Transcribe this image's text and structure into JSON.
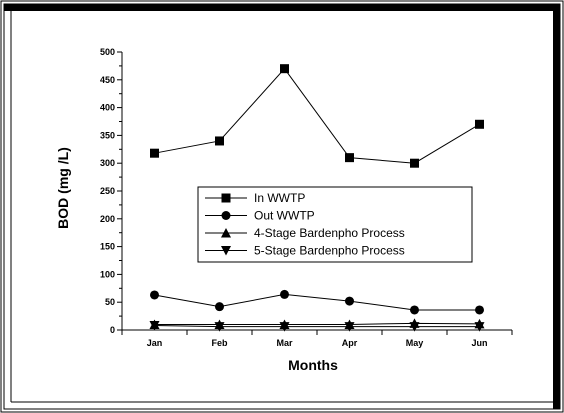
{
  "chart_data": {
    "type": "line",
    "title": "",
    "xlabel": "Months",
    "ylabel": "BOD (mg /L)",
    "categories": [
      "Jan",
      "Feb",
      "Mar",
      "Apr",
      "May",
      "Jun"
    ],
    "ylim": [
      0,
      500
    ],
    "yticks": [
      0,
      50,
      100,
      150,
      200,
      250,
      300,
      350,
      400,
      450,
      500
    ],
    "grid": false,
    "legend_position": "center",
    "series": [
      {
        "name": "In WWTP",
        "marker": "square",
        "values": [
          318,
          340,
          470,
          310,
          300,
          370
        ]
      },
      {
        "name": "Out WWTP",
        "marker": "circle",
        "values": [
          63,
          42,
          64,
          52,
          36,
          36
        ]
      },
      {
        "name": "4-Stage Bardenpho Process",
        "marker": "triangle-up",
        "values": [
          10,
          10,
          10,
          10,
          12,
          11
        ]
      },
      {
        "name": "5-Stage Bardenpho Process",
        "marker": "triangle-down",
        "values": [
          8,
          6,
          6,
          6,
          6,
          6
        ]
      }
    ]
  }
}
